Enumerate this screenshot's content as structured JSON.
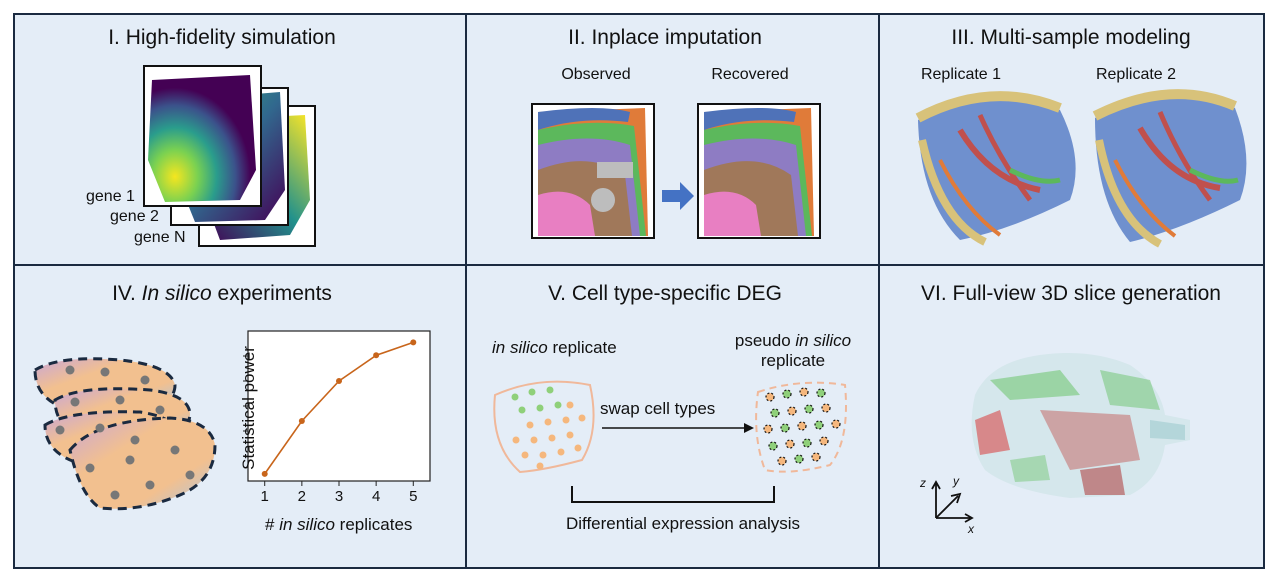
{
  "panels": {
    "p1": {
      "title": "I. High-fidelity simulation",
      "genes": [
        "gene 1",
        "gene 2",
        "gene N"
      ]
    },
    "p2": {
      "title": "II. Inplace imputation",
      "observed": "Observed",
      "recovered": "Recovered"
    },
    "p3": {
      "title": "III. Multi-sample modeling",
      "rep1": "Replicate 1",
      "rep2": "Replicate 2"
    },
    "p4": {
      "title_prefix": "IV. ",
      "title_italic": "In silico",
      "title_suffix": " experiments"
    },
    "p5": {
      "title": "V. Cell type-specific DEG",
      "left_italic": "in silico",
      "left_rest": " replicate",
      "right_line1_plain": "pseudo ",
      "right_line1_italic": "in silico",
      "right_line2": "replicate",
      "arrow_label": "swap cell types",
      "bottom_label": "Differential expression analysis"
    },
    "p6": {
      "title": "VI. Full-view 3D slice generation",
      "axis_z": "z",
      "axis_y": "y",
      "axis_x": "x"
    }
  },
  "colors": {
    "panel_bg": "#e4edf7",
    "border": "#1a2a40",
    "line_orange": "#c8651b",
    "arrow_blue": "#4472c4"
  },
  "chart_data": {
    "type": "line",
    "x": [
      1,
      2,
      3,
      4,
      5
    ],
    "y": [
      0.05,
      0.42,
      0.7,
      0.88,
      0.97
    ],
    "xlabel_prefix": "# ",
    "xlabel_italic": "in silico",
    "xlabel_suffix": " replicates",
    "ylabel": "Statistical power",
    "xticks": [
      "1",
      "2",
      "3",
      "4",
      "5"
    ],
    "ylim": [
      0,
      1.05
    ],
    "color": "#c8651b"
  }
}
